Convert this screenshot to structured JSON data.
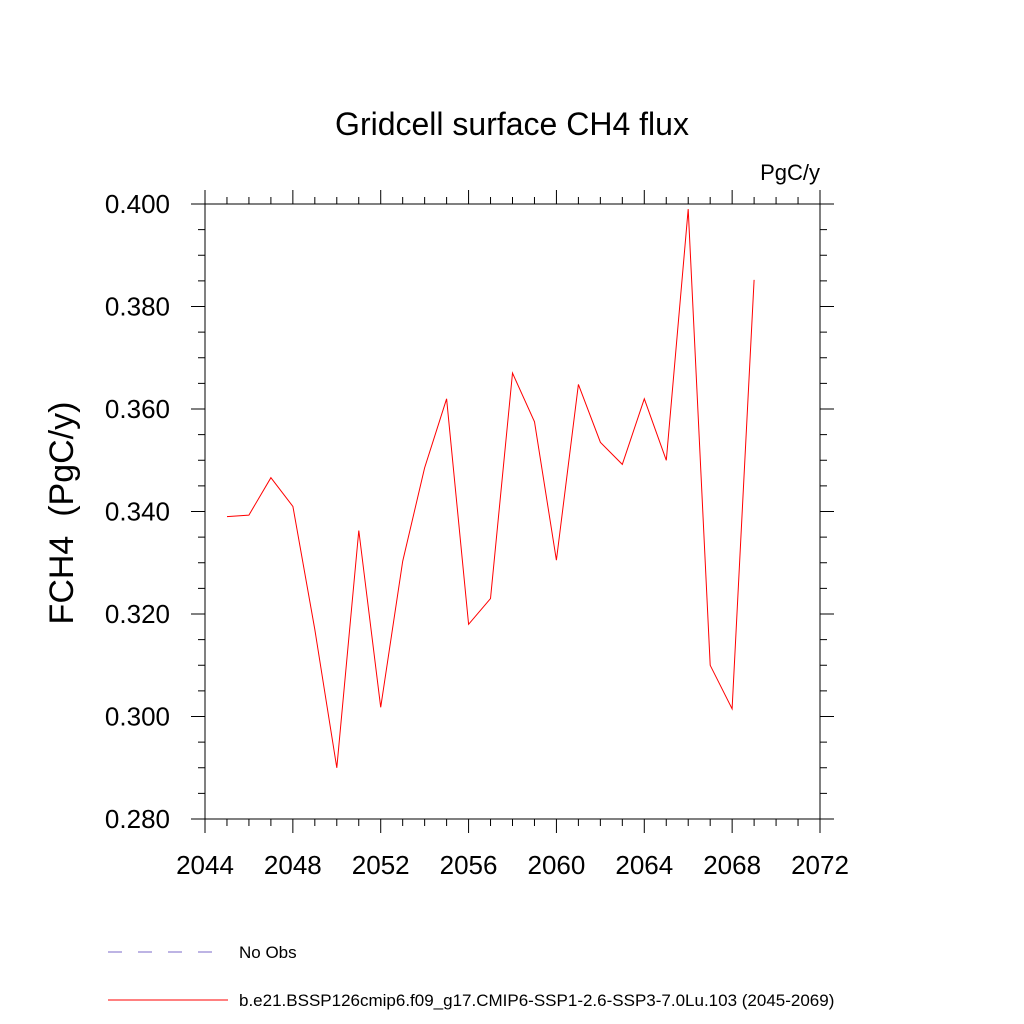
{
  "chart_data": {
    "type": "line",
    "title": "Gridcell surface CH4 flux",
    "units": "PgC/y",
    "ylabel": "FCH4  (PgC/y)",
    "xlabel": "",
    "xlim": [
      2044,
      2072
    ],
    "ylim": [
      0.28,
      0.4
    ],
    "xticks": [
      2044,
      2048,
      2052,
      2056,
      2060,
      2064,
      2068,
      2072
    ],
    "xtick_labels": [
      "2044",
      "2048",
      "2052",
      "2056",
      "2060",
      "2064",
      "2068",
      "2072"
    ],
    "yticks": [
      0.28,
      0.3,
      0.32,
      0.34,
      0.36,
      0.38,
      0.4
    ],
    "ytick_labels": [
      "0.280",
      "0.300",
      "0.320",
      "0.340",
      "0.360",
      "0.380",
      "0.400"
    ],
    "grid": false,
    "legend_position": "bottom",
    "series": [
      {
        "name": "b.e21.BSSP126cmip6.f09_g17.CMIP6-SSP1-2.6-SSP3-7.0Lu.103 (2045-2069)",
        "color": "#ff0000",
        "style": "solid",
        "x": [
          2045,
          2046,
          2047,
          2048,
          2049,
          2050,
          2051,
          2052,
          2053,
          2054,
          2055,
          2056,
          2057,
          2058,
          2059,
          2060,
          2061,
          2062,
          2063,
          2064,
          2065,
          2066,
          2067,
          2068,
          2069
        ],
        "y": [
          0.339,
          0.3393,
          0.3466,
          0.341,
          0.317,
          0.29,
          0.3363,
          0.3018,
          0.3303,
          0.3485,
          0.362,
          0.318,
          0.323,
          0.367,
          0.3575,
          0.3305,
          0.3648,
          0.3535,
          0.3492,
          0.362,
          0.35,
          0.399,
          0.31,
          0.3015,
          0.3852
        ]
      }
    ],
    "legend": [
      {
        "label": "No Obs",
        "color": "#7b68c9",
        "style": "dashed"
      },
      {
        "label": "b.e21.BSSP126cmip6.f09_g17.CMIP6-SSP1-2.6-SSP3-7.0Lu.103 (2045-2069)",
        "color": "#ff0000",
        "style": "solid"
      }
    ]
  }
}
